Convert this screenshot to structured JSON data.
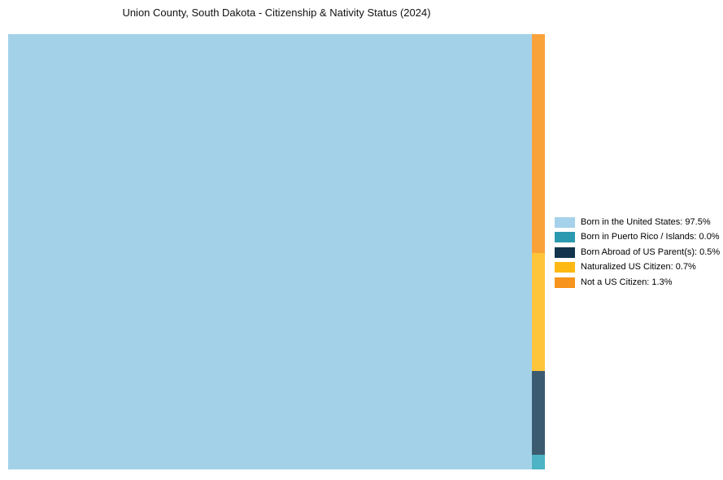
{
  "title": "Union County, South Dakota - Citizenship & Nativity Status (2024)",
  "colors": {
    "background": "#FFFFFF",
    "title_text": "#111111",
    "legend_text": "#000000"
  },
  "chart_data": {
    "type": "treemap",
    "title": "Union County, South Dakota - Citizenship & Nativity Status (2024)",
    "unit": "%",
    "legend_position": "right",
    "total_pct": 100,
    "series": [
      {
        "label": "Born in the United States",
        "value_pct": 97.5,
        "legend_label": "Born in the United States: 97.5%",
        "legend_color": "#A5D2EA",
        "tile_color": "#A3D2E8"
      },
      {
        "label": "Born in Puerto Rico / Islands",
        "value_pct": 0.0,
        "legend_label": "Born in Puerto Rico / Islands: 0.0%",
        "legend_color": "#2B9AB0",
        "tile_color": "#4DB3C5"
      },
      {
        "label": "Born Abroad of US Parent(s)",
        "value_pct": 0.5,
        "legend_label": "Born Abroad of US Parent(s): 0.5%",
        "legend_color": "#12344C",
        "tile_color": "#3B5C70"
      },
      {
        "label": "Naturalized US Citizen",
        "value_pct": 0.7,
        "legend_label": "Naturalized US Citizen: 0.7%",
        "legend_color": "#FDB813",
        "tile_color": "#FEC53A"
      },
      {
        "label": "Not a US Citizen",
        "value_pct": 1.3,
        "legend_label": "Not a US Citizen: 1.3%",
        "legend_color": "#F7941D",
        "tile_color": "#F9A23A"
      }
    ],
    "strip_order_top_to_bottom": [
      "Not a US Citizen",
      "Naturalized US Citizen",
      "Born Abroad of US Parent(s)",
      "Born in Puerto Rico / Islands"
    ]
  }
}
